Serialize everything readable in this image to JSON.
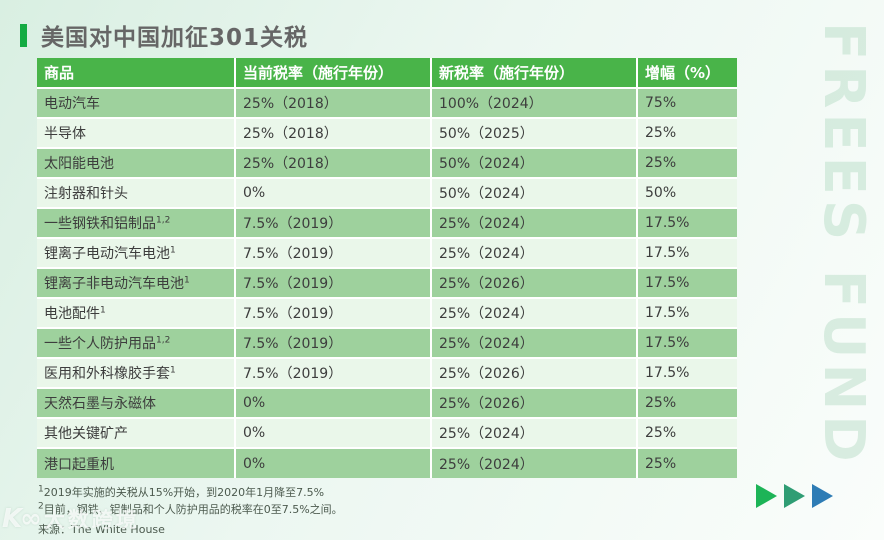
{
  "title": "美国对中国加征301关税",
  "table": {
    "columns": [
      "商品",
      "当前税率（施行年份）",
      "新税率（施行年份）",
      "增幅（%）"
    ],
    "rows": [
      {
        "product": "电动汽车",
        "sup": "",
        "current": "25%（2018）",
        "new": "100%（2024）",
        "increase": "75%"
      },
      {
        "product": "半导体",
        "sup": "",
        "current": "25%（2018）",
        "new": "50%（2025）",
        "increase": "25%"
      },
      {
        "product": "太阳能电池",
        "sup": "",
        "current": "25%（2018）",
        "new": "50%（2024）",
        "increase": "25%"
      },
      {
        "product": "注射器和针头",
        "sup": "",
        "current": "0%",
        "new": "50%（2024）",
        "increase": "50%"
      },
      {
        "product": "一些钢铁和铝制品",
        "sup": "1,2",
        "current": "7.5%（2019）",
        "new": "25%（2024）",
        "increase": "17.5%"
      },
      {
        "product": "锂离子电动汽车电池",
        "sup": "1",
        "current": "7.5%（2019）",
        "new": "25%（2024）",
        "increase": "17.5%"
      },
      {
        "product": "锂离子非电动汽车电池",
        "sup": "1",
        "current": "7.5%（2019）",
        "new": "25%（2026）",
        "increase": "17.5%"
      },
      {
        "product": "电池配件",
        "sup": "1",
        "current": "7.5%（2019）",
        "new": "25%（2024）",
        "increase": "17.5%"
      },
      {
        "product": "一些个人防护用品",
        "sup": "1,2",
        "current": "7.5%（2019）",
        "new": "25%（2024）",
        "increase": "17.5%"
      },
      {
        "product": "医用和外科橡胶手套",
        "sup": "1",
        "current": "7.5%（2019）",
        "new": "25%（2026）",
        "increase": "17.5%"
      },
      {
        "product": "天然石墨与永磁体",
        "sup": "",
        "current": "0%",
        "new": "25%（2026）",
        "increase": "25%"
      },
      {
        "product": "其他关键矿产",
        "sup": "",
        "current": "0%",
        "new": "25%（2024）",
        "increase": "25%"
      },
      {
        "product": "港口起重机",
        "sup": "",
        "current": "0%",
        "new": "25%（2024）",
        "increase": "25%"
      }
    ]
  },
  "footnotes": [
    {
      "sup": "1",
      "text": "2019年实施的关税从15%开始，到2020年1月降至7.5%"
    },
    {
      "sup": "2",
      "text": "目前，钢铁、铝制品和个人防护用品的税率在0至7.5%之间。"
    }
  ],
  "source": "来源：The White House",
  "watermarks": {
    "side": "FREES FUND",
    "bottom_logo": "K∞",
    "bottom_text": "大数跨境"
  },
  "arrows": {
    "colors": [
      "#1db457",
      "#2f9d74",
      "#2e7cb5"
    ]
  },
  "theme": {
    "header_bg": "#49b449",
    "row_dark": "#9ed19d",
    "row_light": "#eaf7ea",
    "accent": "#14ab43",
    "title_color": "#666666",
    "cell_text": "#3d3d3d",
    "footnote_color": "#4c5a4e",
    "bg_from": "#d9efe2",
    "bg_mid": "#ecf7f1",
    "bg_to": "#fafdfb"
  }
}
